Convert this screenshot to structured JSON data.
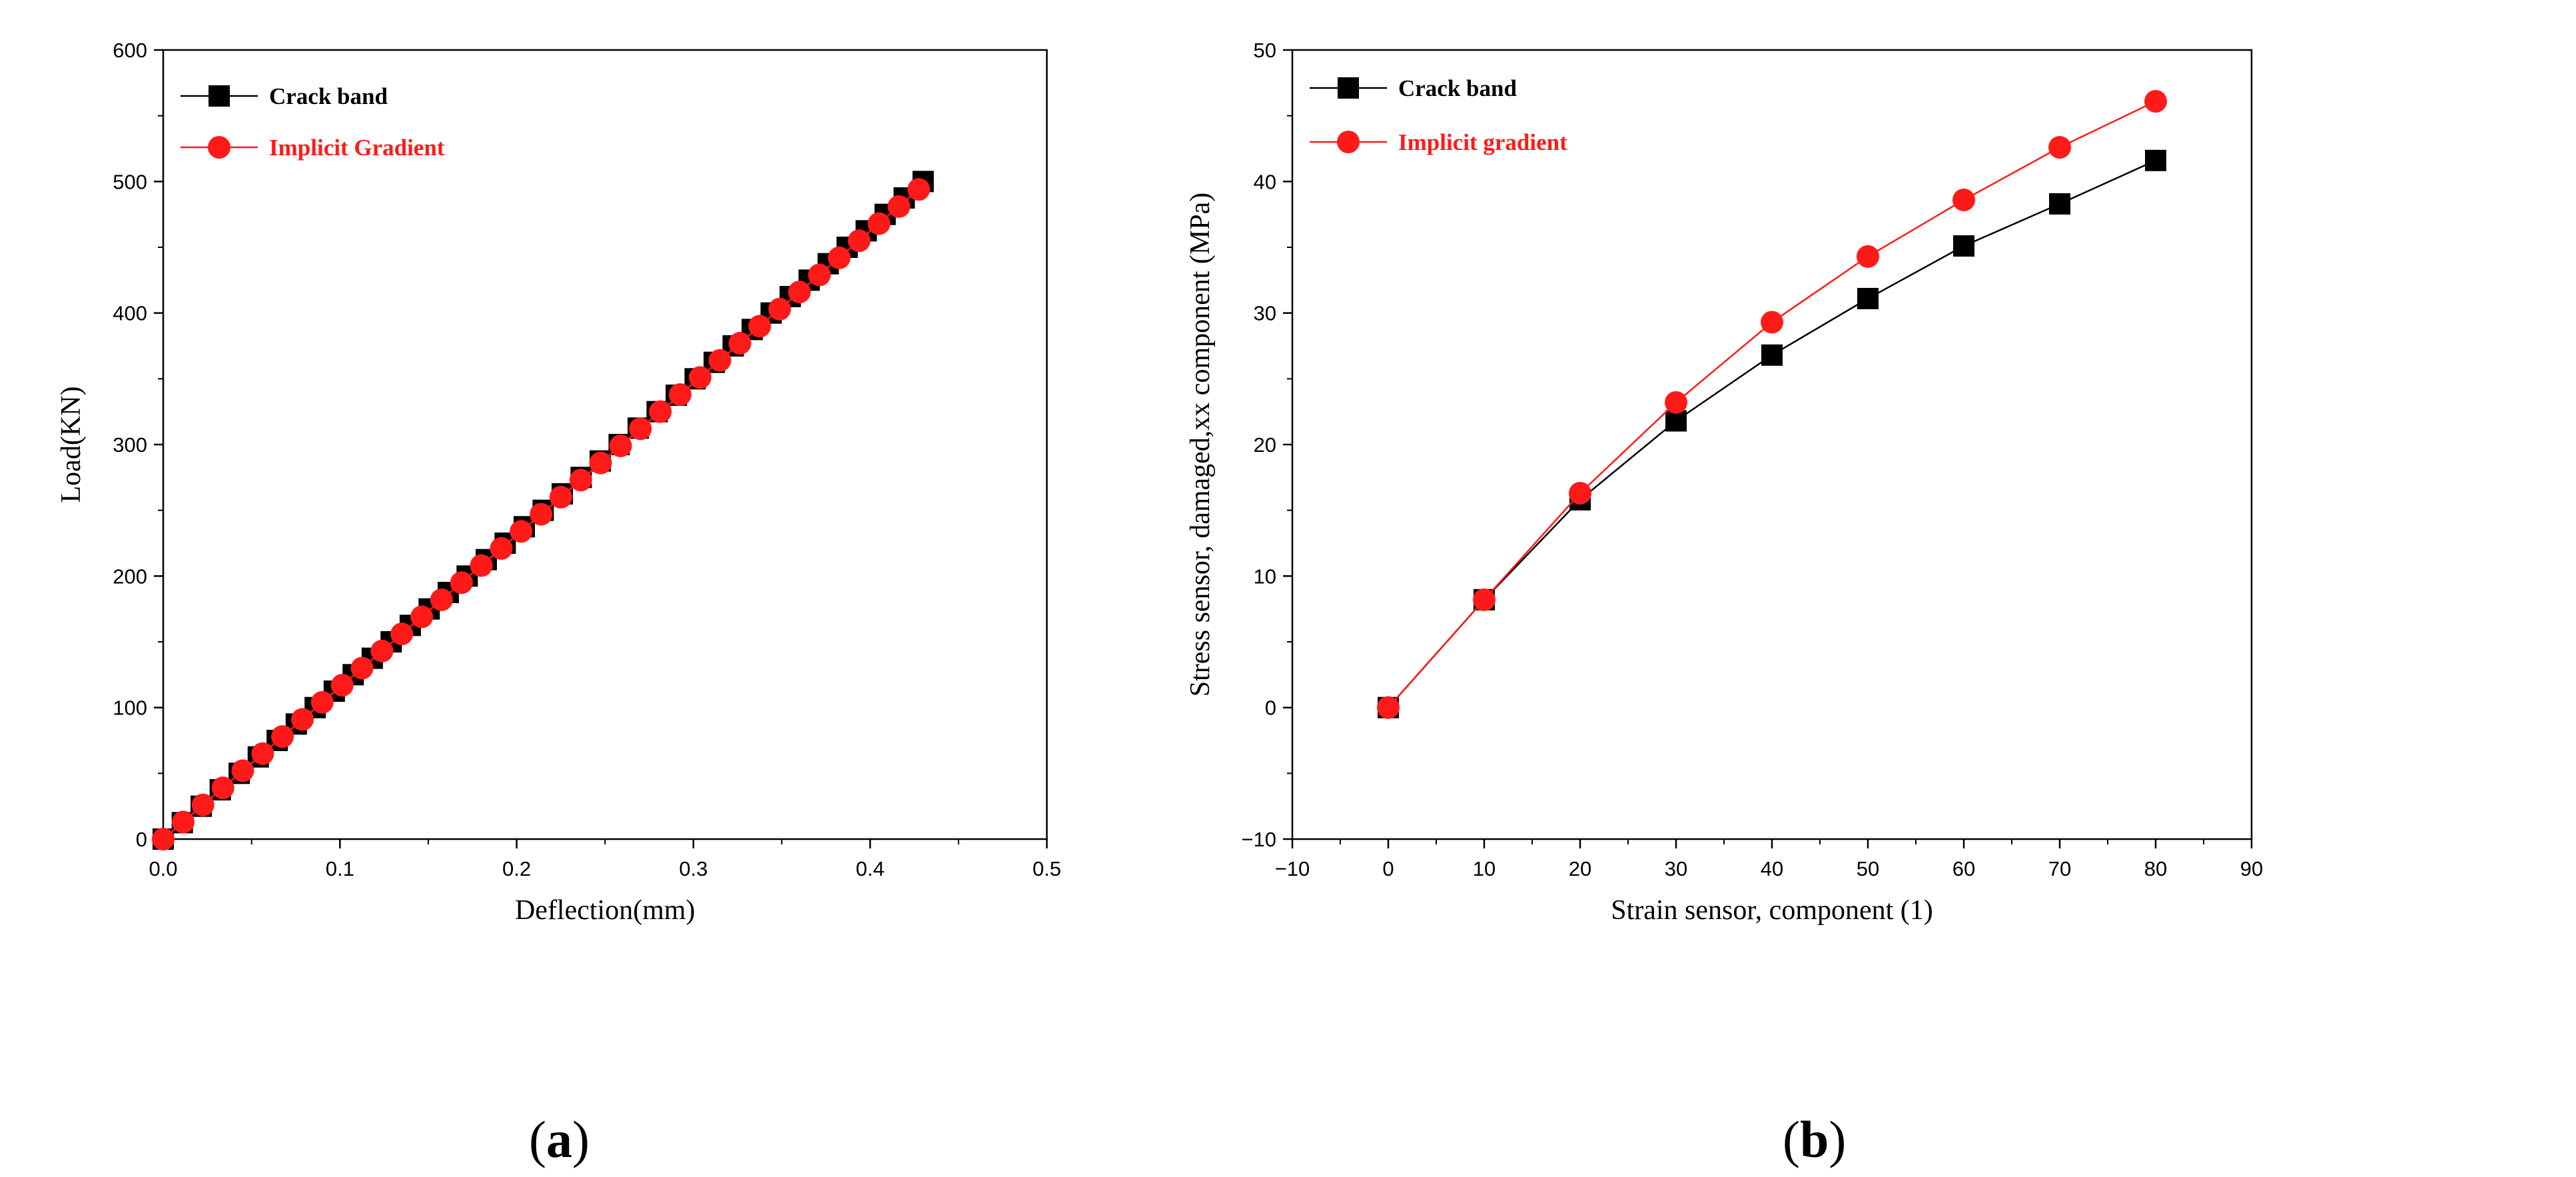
{
  "chart_data": [
    {
      "type": "line",
      "panel": "a",
      "title": "",
      "xlabel": "Deflection(mm)",
      "ylabel": "Load(KN)",
      "xlim": [
        0.0,
        0.5
      ],
      "ylim": [
        0,
        600
      ],
      "xticks": [
        "0.0",
        "0.1",
        "0.2",
        "0.3",
        "0.4",
        "0.5"
      ],
      "yticks": [
        "0",
        "100",
        "200",
        "300",
        "400",
        "500",
        "600"
      ],
      "grid": false,
      "legend_position": "top-left",
      "series": [
        {
          "name": "Crack band",
          "color": "#000000",
          "marker": "square",
          "x": [
            0.0,
            0.0108,
            0.0215,
            0.0323,
            0.043,
            0.0538,
            0.0645,
            0.0753,
            0.086,
            0.0968,
            0.1075,
            0.1183,
            0.129,
            0.1398,
            0.1505,
            0.1613,
            0.172,
            0.1828,
            0.1935,
            0.2043,
            0.215,
            0.2258,
            0.2365,
            0.2473,
            0.258,
            0.2688,
            0.2795,
            0.2903,
            0.301,
            0.3118,
            0.3225,
            0.3333,
            0.344,
            0.3548,
            0.3655,
            0.3763,
            0.387,
            0.3978,
            0.4085,
            0.4193,
            0.43
          ],
          "y": [
            0,
            12.5,
            25,
            37.5,
            50,
            62.5,
            75,
            87.5,
            100,
            112.5,
            125,
            137.5,
            150,
            162.5,
            175,
            187.5,
            200,
            212.5,
            225,
            237.5,
            250,
            262.5,
            275,
            287.5,
            300,
            312.5,
            325,
            337.5,
            350,
            362.5,
            375,
            387.5,
            400,
            412.5,
            425,
            437.5,
            450,
            462.5,
            475,
            487.5,
            500
          ]
        },
        {
          "name": "Implicit Gradient",
          "color": "#ff1a1a",
          "marker": "circle",
          "x": [
            0.0,
            0.0113,
            0.0225,
            0.0338,
            0.045,
            0.0563,
            0.0675,
            0.0788,
            0.09,
            0.1013,
            0.1125,
            0.1238,
            0.135,
            0.1463,
            0.1575,
            0.1688,
            0.18,
            0.1913,
            0.2025,
            0.2138,
            0.225,
            0.2363,
            0.2475,
            0.2588,
            0.27,
            0.2813,
            0.2925,
            0.3038,
            0.315,
            0.3263,
            0.3375,
            0.3488,
            0.36,
            0.3713,
            0.3825,
            0.3938,
            0.405,
            0.4163,
            0.4275
          ],
          "y": [
            0,
            13,
            26,
            39,
            52,
            65,
            78,
            91,
            104,
            117,
            130,
            143,
            156,
            169,
            182,
            195,
            208,
            221,
            234,
            247,
            260,
            273,
            286,
            299,
            312,
            325,
            338,
            351,
            364,
            377,
            390,
            403,
            416,
            429,
            442,
            455,
            468,
            481,
            494
          ]
        }
      ]
    },
    {
      "type": "line",
      "panel": "b",
      "title": "",
      "xlabel": "Strain sensor, component (1)",
      "ylabel": "Stress sensor, damaged,xx component (MPa)",
      "xlim": [
        -10,
        90
      ],
      "ylim": [
        -10,
        50
      ],
      "xticks": [
        "−10",
        "0",
        "10",
        "20",
        "30",
        "40",
        "50",
        "60",
        "70",
        "80",
        "90"
      ],
      "yticks": [
        "−10",
        "0",
        "10",
        "20",
        "30",
        "40",
        "50"
      ],
      "grid": false,
      "legend_position": "top-left",
      "series": [
        {
          "name": "Crack band",
          "color": "#000000",
          "marker": "square",
          "x": [
            0,
            10,
            20,
            30,
            40,
            50,
            60,
            70,
            80
          ],
          "y": [
            0,
            8.2,
            15.8,
            21.8,
            26.8,
            31.1,
            35.1,
            38.3,
            41.6
          ]
        },
        {
          "name": "Implicit gradient",
          "color": "#ff1a1a",
          "marker": "circle",
          "x": [
            0,
            10,
            20,
            30,
            40,
            50,
            60,
            70,
            80
          ],
          "y": [
            0,
            8.2,
            16.3,
            23.2,
            29.3,
            34.3,
            38.6,
            42.6,
            46.1
          ]
        }
      ]
    }
  ],
  "panel_labels": [
    "(a)",
    "(b)"
  ],
  "label_parts": [
    {
      "open": "(",
      "letter": "a",
      "close": ")"
    },
    {
      "open": "(",
      "letter": "b",
      "close": ")"
    }
  ]
}
